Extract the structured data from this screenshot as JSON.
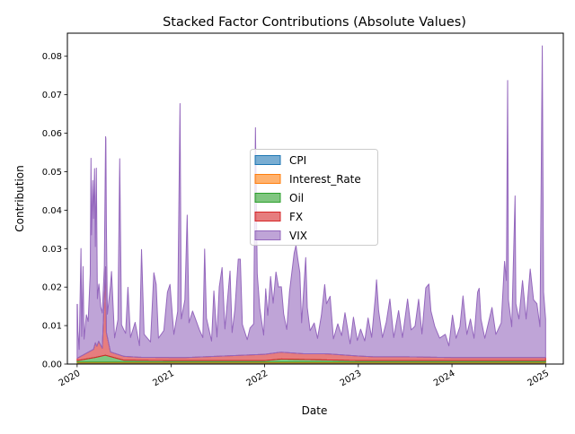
{
  "chart_data": {
    "type": "area",
    "stacked": true,
    "title": "Stacked Factor Contributions (Absolute Values)",
    "xlabel": "Date",
    "ylabel": "Contribution",
    "x_range": [
      "2019-11-24",
      "2025-03-10"
    ],
    "ylim": [
      0,
      0.086
    ],
    "x_ticks": [
      {
        "date": "2020-01-01",
        "label": "2020"
      },
      {
        "date": "2021-01-01",
        "label": "2021"
      },
      {
        "date": "2022-01-01",
        "label": "2022"
      },
      {
        "date": "2023-01-01",
        "label": "2023"
      },
      {
        "date": "2024-01-01",
        "label": "2024"
      },
      {
        "date": "2025-01-01",
        "label": "2025"
      }
    ],
    "y_ticks": [
      {
        "value": 0.0,
        "label": "0.00"
      },
      {
        "value": 0.01,
        "label": "0.01"
      },
      {
        "value": 0.02,
        "label": "0.02"
      },
      {
        "value": 0.03,
        "label": "0.03"
      },
      {
        "value": 0.04,
        "label": "0.04"
      },
      {
        "value": 0.05,
        "label": "0.05"
      },
      {
        "value": 0.06,
        "label": "0.06"
      },
      {
        "value": 0.07,
        "label": "0.07"
      },
      {
        "value": 0.08,
        "label": "0.08"
      }
    ],
    "grid": false,
    "legend_position": "center",
    "series": [
      {
        "name": "CPI",
        "color": "#1f77b4",
        "points": [
          [
            "2020-01-01",
            0.0003
          ],
          [
            "2020-07-01",
            0.0003
          ],
          [
            "2021-01-01",
            0.0003
          ],
          [
            "2021-07-01",
            0.0003
          ],
          [
            "2022-01-01",
            0.0003
          ],
          [
            "2022-07-01",
            0.0003
          ],
          [
            "2023-01-01",
            0.0003
          ],
          [
            "2023-07-01",
            0.0003
          ],
          [
            "2024-01-01",
            0.0003
          ],
          [
            "2024-07-01",
            0.0003
          ],
          [
            "2024-12-31",
            0.0003
          ]
        ]
      },
      {
        "name": "Interest_Rate",
        "color": "#ff7f0e",
        "points": [
          [
            "2020-01-01",
            0.0002
          ],
          [
            "2020-07-01",
            0.0002
          ],
          [
            "2021-01-01",
            0.0002
          ],
          [
            "2021-07-01",
            0.0002
          ],
          [
            "2022-01-01",
            0.0002
          ],
          [
            "2022-07-01",
            0.0002
          ],
          [
            "2023-01-01",
            0.0002
          ],
          [
            "2023-07-01",
            0.0002
          ],
          [
            "2024-01-01",
            0.0002
          ],
          [
            "2024-07-01",
            0.0002
          ],
          [
            "2024-12-31",
            0.0002
          ]
        ]
      },
      {
        "name": "Oil",
        "color": "#2ca02c",
        "points": [
          [
            "2020-01-01",
            0.0004
          ],
          [
            "2020-03-10",
            0.0012
          ],
          [
            "2020-04-20",
            0.0018
          ],
          [
            "2020-07-01",
            0.0005
          ],
          [
            "2021-01-01",
            0.0004
          ],
          [
            "2022-01-01",
            0.0004
          ],
          [
            "2022-03-08",
            0.0008
          ],
          [
            "2023-01-01",
            0.0004
          ],
          [
            "2024-01-01",
            0.0004
          ],
          [
            "2024-12-31",
            0.0004
          ]
        ]
      },
      {
        "name": "FX",
        "color": "#d62728",
        "points": [
          [
            "2020-01-01",
            0.0006
          ],
          [
            "2020-03-05",
            0.0022
          ],
          [
            "2020-03-12",
            0.0038
          ],
          [
            "2020-03-18",
            0.0028
          ],
          [
            "2020-03-25",
            0.004
          ],
          [
            "2020-04-08",
            0.002
          ],
          [
            "2020-04-21",
            0.023
          ],
          [
            "2020-04-24",
            0.006
          ],
          [
            "2020-05-10",
            0.0012
          ],
          [
            "2020-09-01",
            0.0008
          ],
          [
            "2021-03-01",
            0.0008
          ],
          [
            "2022-03-01",
            0.0018
          ],
          [
            "2022-06-01",
            0.0015
          ],
          [
            "2022-09-01",
            0.0016
          ],
          [
            "2023-03-01",
            0.001
          ],
          [
            "2023-07-01",
            0.001
          ],
          [
            "2024-01-01",
            0.0008
          ],
          [
            "2024-12-31",
            0.0008
          ]
        ]
      },
      {
        "name": "VIX",
        "color": "#9467bd",
        "points": [
          [
            "2020-01-02",
            0.014
          ],
          [
            "2020-01-04",
            0.007
          ],
          [
            "2020-01-09",
            0.002
          ],
          [
            "2020-01-16",
            0.028
          ],
          [
            "2020-01-19",
            0.005
          ],
          [
            "2020-01-24",
            0.023
          ],
          [
            "2020-01-28",
            0.004
          ],
          [
            "2020-02-06",
            0.01
          ],
          [
            "2020-02-13",
            0.008
          ],
          [
            "2020-02-21",
            0.02
          ],
          [
            "2020-02-24",
            0.05
          ],
          [
            "2020-02-26",
            0.03
          ],
          [
            "2020-03-02",
            0.044
          ],
          [
            "2020-03-05",
            0.034
          ],
          [
            "2020-03-09",
            0.046
          ],
          [
            "2020-03-12",
            0.025
          ],
          [
            "2020-03-16",
            0.046
          ],
          [
            "2020-03-20",
            0.012
          ],
          [
            "2020-03-26",
            0.015
          ],
          [
            "2020-04-02",
            0.01
          ],
          [
            "2020-04-16",
            0.008
          ],
          [
            "2020-04-22",
            0.039
          ],
          [
            "2020-04-28",
            0.006
          ],
          [
            "2020-05-14",
            0.021
          ],
          [
            "2020-05-26",
            0.004
          ],
          [
            "2020-06-08",
            0.009
          ],
          [
            "2020-06-15",
            0.051
          ],
          [
            "2020-06-22",
            0.008
          ],
          [
            "2020-07-08",
            0.006
          ],
          [
            "2020-07-17",
            0.018
          ],
          [
            "2020-07-27",
            0.005
          ],
          [
            "2020-08-14",
            0.009
          ],
          [
            "2020-08-31",
            0.003
          ],
          [
            "2020-09-08",
            0.028
          ],
          [
            "2020-09-18",
            0.006
          ],
          [
            "2020-10-13",
            0.004
          ],
          [
            "2020-10-26",
            0.022
          ],
          [
            "2020-11-04",
            0.019
          ],
          [
            "2020-11-13",
            0.005
          ],
          [
            "2020-12-04",
            0.007
          ],
          [
            "2020-12-18",
            0.017
          ],
          [
            "2020-12-28",
            0.019
          ],
          [
            "2021-01-12",
            0.006
          ],
          [
            "2021-01-27",
            0.012
          ],
          [
            "2021-02-05",
            0.066
          ],
          [
            "2021-02-10",
            0.01
          ],
          [
            "2021-02-24",
            0.015
          ],
          [
            "2021-03-05",
            0.037
          ],
          [
            "2021-03-12",
            0.009
          ],
          [
            "2021-03-26",
            0.012
          ],
          [
            "2021-04-22",
            0.007
          ],
          [
            "2021-05-05",
            0.005
          ],
          [
            "2021-05-12",
            0.028
          ],
          [
            "2021-05-19",
            0.01
          ],
          [
            "2021-06-08",
            0.004
          ],
          [
            "2021-06-17",
            0.017
          ],
          [
            "2021-06-29",
            0.005
          ],
          [
            "2021-07-08",
            0.018
          ],
          [
            "2021-07-19",
            0.023
          ],
          [
            "2021-07-30",
            0.007
          ],
          [
            "2021-08-19",
            0.022
          ],
          [
            "2021-08-27",
            0.006
          ],
          [
            "2021-09-07",
            0.012
          ],
          [
            "2021-09-20",
            0.025
          ],
          [
            "2021-09-28",
            0.025
          ],
          [
            "2021-10-06",
            0.008
          ],
          [
            "2021-10-25",
            0.004
          ],
          [
            "2021-11-05",
            0.007
          ],
          [
            "2021-11-19",
            0.008
          ],
          [
            "2021-11-26",
            0.059
          ],
          [
            "2021-12-03",
            0.021
          ],
          [
            "2021-12-13",
            0.012
          ],
          [
            "2021-12-28",
            0.005
          ],
          [
            "2022-01-05",
            0.017
          ],
          [
            "2022-01-13",
            0.01
          ],
          [
            "2022-01-24",
            0.02
          ],
          [
            "2022-02-03",
            0.013
          ],
          [
            "2022-02-14",
            0.021
          ],
          [
            "2022-02-24",
            0.017
          ],
          [
            "2022-03-07",
            0.017
          ],
          [
            "2022-03-16",
            0.01
          ],
          [
            "2022-03-28",
            0.006
          ],
          [
            "2022-04-08",
            0.016
          ],
          [
            "2022-04-26",
            0.026
          ],
          [
            "2022-05-03",
            0.028
          ],
          [
            "2022-05-09",
            0.025
          ],
          [
            "2022-05-18",
            0.021
          ],
          [
            "2022-05-25",
            0.008
          ],
          [
            "2022-06-10",
            0.025
          ],
          [
            "2022-06-16",
            0.012
          ],
          [
            "2022-06-27",
            0.006
          ],
          [
            "2022-07-13",
            0.008
          ],
          [
            "2022-07-26",
            0.004
          ],
          [
            "2022-08-10",
            0.01
          ],
          [
            "2022-08-23",
            0.018
          ],
          [
            "2022-08-30",
            0.013
          ],
          [
            "2022-09-13",
            0.015
          ],
          [
            "2022-09-26",
            0.004
          ],
          [
            "2022-10-13",
            0.008
          ],
          [
            "2022-10-28",
            0.005
          ],
          [
            "2022-11-10",
            0.011
          ],
          [
            "2022-11-30",
            0.003
          ],
          [
            "2022-12-13",
            0.01
          ],
          [
            "2022-12-28",
            0.004
          ],
          [
            "2023-01-10",
            0.007
          ],
          [
            "2023-01-26",
            0.004
          ],
          [
            "2023-02-08",
            0.01
          ],
          [
            "2023-02-22",
            0.005
          ],
          [
            "2023-03-09",
            0.016
          ],
          [
            "2023-03-13",
            0.02
          ],
          [
            "2023-03-21",
            0.012
          ],
          [
            "2023-04-05",
            0.005
          ],
          [
            "2023-04-20",
            0.009
          ],
          [
            "2023-05-04",
            0.015
          ],
          [
            "2023-05-19",
            0.005
          ],
          [
            "2023-06-07",
            0.012
          ],
          [
            "2023-06-22",
            0.005
          ],
          [
            "2023-07-12",
            0.015
          ],
          [
            "2023-07-26",
            0.007
          ],
          [
            "2023-08-10",
            0.008
          ],
          [
            "2023-08-24",
            0.015
          ],
          [
            "2023-09-06",
            0.006
          ],
          [
            "2023-09-21",
            0.018
          ],
          [
            "2023-10-03",
            0.019
          ],
          [
            "2023-10-11",
            0.012
          ],
          [
            "2023-10-26",
            0.008
          ],
          [
            "2023-11-14",
            0.005
          ],
          [
            "2023-12-06",
            0.006
          ],
          [
            "2023-12-20",
            0.003
          ],
          [
            "2024-01-03",
            0.011
          ],
          [
            "2024-01-17",
            0.005
          ],
          [
            "2024-02-01",
            0.008
          ],
          [
            "2024-02-13",
            0.016
          ],
          [
            "2024-02-28",
            0.006
          ],
          [
            "2024-03-13",
            0.01
          ],
          [
            "2024-03-27",
            0.005
          ],
          [
            "2024-04-10",
            0.017
          ],
          [
            "2024-04-16",
            0.018
          ],
          [
            "2024-04-23",
            0.01
          ],
          [
            "2024-05-08",
            0.005
          ],
          [
            "2024-05-22",
            0.009
          ],
          [
            "2024-06-05",
            0.013
          ],
          [
            "2024-06-20",
            0.006
          ],
          [
            "2024-07-11",
            0.009
          ],
          [
            "2024-07-24",
            0.025
          ],
          [
            "2024-07-31",
            0.02
          ],
          [
            "2024-08-05",
            0.072
          ],
          [
            "2024-08-08",
            0.015
          ],
          [
            "2024-08-21",
            0.008
          ],
          [
            "2024-09-03",
            0.042
          ],
          [
            "2024-09-06",
            0.014
          ],
          [
            "2024-09-18",
            0.01
          ],
          [
            "2024-10-02",
            0.02
          ],
          [
            "2024-10-16",
            0.01
          ],
          [
            "2024-11-01",
            0.023
          ],
          [
            "2024-11-14",
            0.015
          ],
          [
            "2024-11-27",
            0.014
          ],
          [
            "2024-12-09",
            0.008
          ],
          [
            "2024-12-18",
            0.081
          ],
          [
            "2024-12-23",
            0.017
          ],
          [
            "2024-12-31",
            0.01
          ]
        ]
      }
    ]
  }
}
